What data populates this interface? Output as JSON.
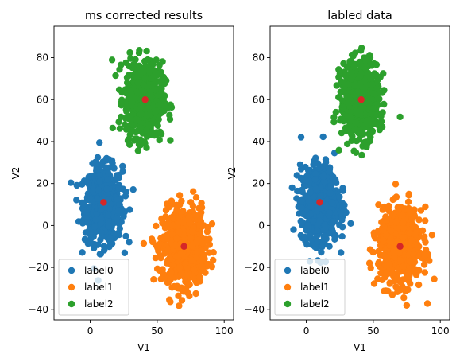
{
  "chart_data": [
    {
      "type": "scatter",
      "title": "ms corrected results",
      "xlabel": "V1",
      "ylabel": "V2",
      "xlim": [
        -27,
        107
      ],
      "ylim": [
        -45,
        95
      ],
      "xticks": [
        0,
        50,
        100
      ],
      "yticks": [
        -40,
        -20,
        0,
        20,
        40,
        60,
        80
      ],
      "legend_position": "lower left",
      "series": [
        {
          "name": "label0",
          "color": "#1f77b4",
          "center": [
            10,
            10
          ],
          "spread": [
            7,
            9
          ],
          "count": 650
        },
        {
          "name": "label1",
          "color": "#ff7f0e",
          "center": [
            70,
            -10
          ],
          "spread": [
            8,
            9
          ],
          "count": 650
        },
        {
          "name": "label2",
          "color": "#2ca02c",
          "center": [
            40,
            60
          ],
          "spread": [
            7,
            9
          ],
          "count": 650
        }
      ],
      "centroids": {
        "color": "#d62728",
        "points": [
          [
            10,
            11
          ],
          [
            70,
            -10
          ],
          [
            41,
            60
          ]
        ]
      }
    },
    {
      "type": "scatter",
      "title": "labled data",
      "xlabel": "V1",
      "ylabel": "V2",
      "xlim": [
        -27,
        107
      ],
      "ylim": [
        -45,
        95
      ],
      "xticks": [
        0,
        50,
        100
      ],
      "yticks": [
        -40,
        -20,
        0,
        20,
        40,
        60,
        80
      ],
      "legend_position": "lower left",
      "series": [
        {
          "name": "label0",
          "color": "#1f77b4",
          "center": [
            10,
            10
          ],
          "spread": [
            7,
            9
          ],
          "count": 650
        },
        {
          "name": "label1",
          "color": "#ff7f0e",
          "center": [
            70,
            -10
          ],
          "spread": [
            8,
            9
          ],
          "count": 650
        },
        {
          "name": "label2",
          "color": "#2ca02c",
          "center": [
            40,
            60
          ],
          "spread": [
            7,
            9
          ],
          "count": 650
        }
      ],
      "centroids": {
        "color": "#d62728",
        "points": [
          [
            10,
            11
          ],
          [
            70,
            -10
          ],
          [
            41,
            60
          ]
        ]
      }
    }
  ]
}
